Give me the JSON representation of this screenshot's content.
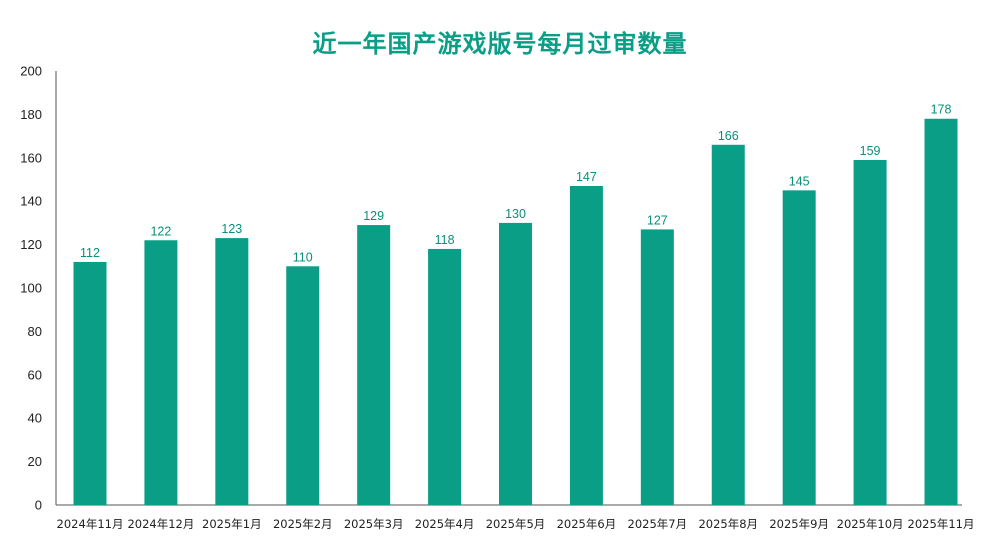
{
  "chart_data": {
    "type": "bar",
    "title": "近一年国产游戏版号每月过审数量",
    "xlabel": "",
    "ylabel": "",
    "ylim": [
      0,
      200
    ],
    "yticks": [
      0,
      20,
      40,
      60,
      80,
      100,
      120,
      140,
      160,
      180,
      200
    ],
    "grid": false,
    "legend": "none",
    "bar_color": "#0a9e87",
    "label_color": "#0a8f7a",
    "categories": [
      "2024年11月",
      "2024年12月",
      "2025年1月",
      "2025年2月",
      "2025年3月",
      "2025年4月",
      "2025年5月",
      "2025年6月",
      "2025年7月",
      "2025年8月",
      "2025年9月",
      "2025年10月",
      "2025年11月"
    ],
    "values": [
      112,
      122,
      123,
      110,
      129,
      118,
      130,
      147,
      127,
      166,
      145,
      159,
      178
    ]
  }
}
